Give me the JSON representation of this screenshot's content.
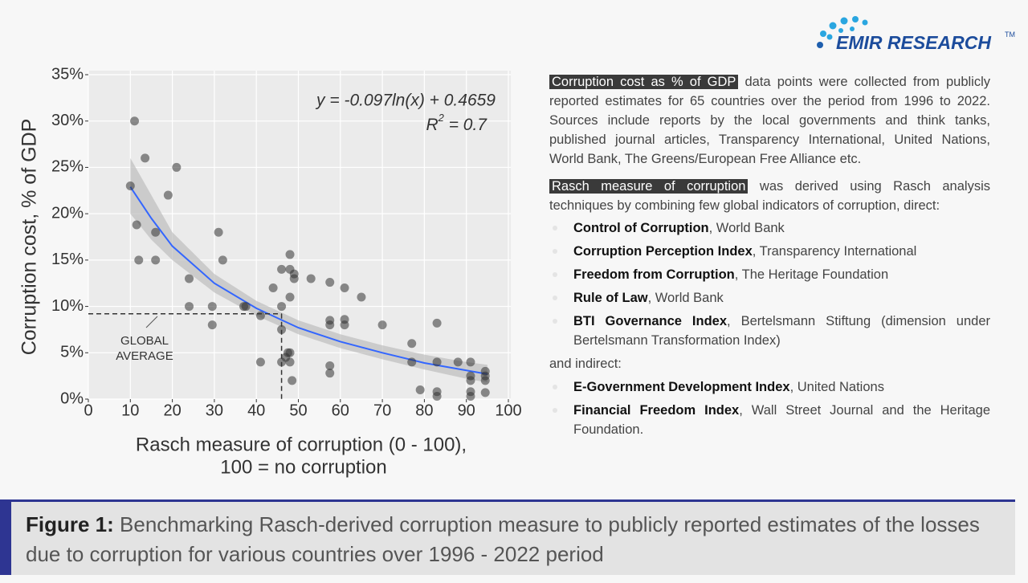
{
  "logo": {
    "name": "EMIR RESEARCH",
    "tm": "TM"
  },
  "chart_data": {
    "type": "scatter",
    "y_label": "Corruption cost, % of GDP",
    "x_label": [
      "Rasch measure of corruption (0 - 100),",
      "100 = no corruption"
    ],
    "equation": "y = -0.097ln(x) + 0.4659",
    "r2": {
      "base": "R",
      "sup": "2",
      "rest": " = 0.7"
    },
    "x": [
      10,
      11,
      11.5,
      12,
      13.5,
      16,
      16,
      19,
      21,
      24,
      24,
      29.5,
      29.5,
      31,
      32,
      37,
      37.5,
      41,
      41,
      44,
      46,
      46,
      46,
      46,
      47,
      47.5,
      48,
      48,
      48,
      48,
      48,
      48.5,
      49,
      49,
      53,
      57.5,
      57.5,
      57.5,
      57.5,
      57.5,
      61,
      61,
      61,
      65,
      70,
      77,
      77,
      79,
      83,
      83,
      83,
      83,
      88,
      91,
      91,
      91,
      91,
      91,
      94.5,
      94.5,
      94.5,
      94.5
    ],
    "values": [
      23,
      30,
      18.8,
      15,
      26,
      18,
      15,
      22,
      25,
      13,
      10,
      10,
      8,
      18,
      15,
      10,
      10,
      9,
      4,
      12,
      14,
      10,
      7.5,
      4,
      4.5,
      5,
      15.6,
      14,
      11,
      5,
      4,
      2,
      13.5,
      13,
      13,
      12.6,
      8.5,
      8,
      3.6,
      2.8,
      12,
      8.6,
      8,
      11,
      8,
      6,
      4,
      1,
      8.2,
      4,
      0.8,
      0.3,
      4,
      4,
      2.5,
      2,
      0.8,
      0.3,
      3,
      2.5,
      2,
      0.7
    ],
    "color": "#333333",
    "fit": {
      "x": [
        10,
        15,
        20,
        30,
        40,
        50,
        60,
        70,
        80,
        90,
        95
      ],
      "values": [
        22.9,
        19.5,
        16.5,
        12.5,
        9.8,
        7.7,
        6.2,
        5,
        3.9,
        3.1,
        2.7
      ],
      "lower": [
        20,
        17.2,
        15,
        11.5,
        9,
        7,
        5.5,
        4.3,
        3.2,
        2.2,
        1.8
      ],
      "upper": [
        26,
        22,
        18,
        13.5,
        10.6,
        8.5,
        7,
        5.8,
        4.8,
        4,
        3.7
      ],
      "color": "#3366ff",
      "band_color": "#bdbdbd"
    },
    "reference": {
      "x": 46,
      "y": 9.2,
      "label": [
        "GLOBAL",
        "AVERAGE"
      ]
    },
    "xlim": [
      0,
      100
    ],
    "ylim": [
      0,
      35
    ],
    "xticks": [
      0,
      10,
      20,
      30,
      40,
      50,
      60,
      70,
      80,
      90,
      100
    ],
    "yticks": [
      {
        "value": 0,
        "label": "0%"
      },
      {
        "value": 5,
        "label": "5%"
      },
      {
        "value": 10,
        "label": "10%"
      },
      {
        "value": 15,
        "label": "15%"
      },
      {
        "value": 20,
        "label": "20%"
      },
      {
        "value": 25,
        "label": "25%"
      },
      {
        "value": 30,
        "label": "30%"
      },
      {
        "value": 35,
        "label": "35%"
      }
    ],
    "grid": true
  },
  "notes": {
    "p1": {
      "highlight": "Corruption cost as % of GDP",
      "text": " data points were collected from publicly reported estimates for 65 countries over the period from 1996 to 2022. Sources include reports by the local governments and think tanks, published journal articles, Transparency International, United Nations, World Bank, The Greens/European Free Alliance etc."
    },
    "p2": {
      "highlight": "Rasch measure of corruption",
      "text": " was derived using Rasch analysis techniques by combining few global indicators of corruption, direct:"
    },
    "direct": [
      {
        "bold": "Control of Corruption",
        "rest": ", World Bank"
      },
      {
        "bold": "Corruption Perception Index",
        "rest": ", Transparency International"
      },
      {
        "bold": "Freedom from Corruption",
        "rest": ", The Heritage Foundation"
      },
      {
        "bold": "Rule of Law",
        "rest": ", World Bank"
      },
      {
        "bold": "BTI Governance Index",
        "rest": ", Bertelsmann Stiftung (dimension under Bertelsmann Transformation Index)"
      }
    ],
    "indirect_intro": "and indirect:",
    "indirect": [
      {
        "bold": "E-Government Development Index",
        "rest": ", United Nations"
      },
      {
        "bold": "Financial Freedom Index",
        "rest": ", Wall Street Journal and the Heritage Foundation."
      }
    ]
  },
  "caption": {
    "label": "Figure 1:",
    "text": " Benchmarking Rasch-derived corruption measure to publicly reported estimates of the losses due to corruption for various countries over 1996 - 2022 period"
  }
}
